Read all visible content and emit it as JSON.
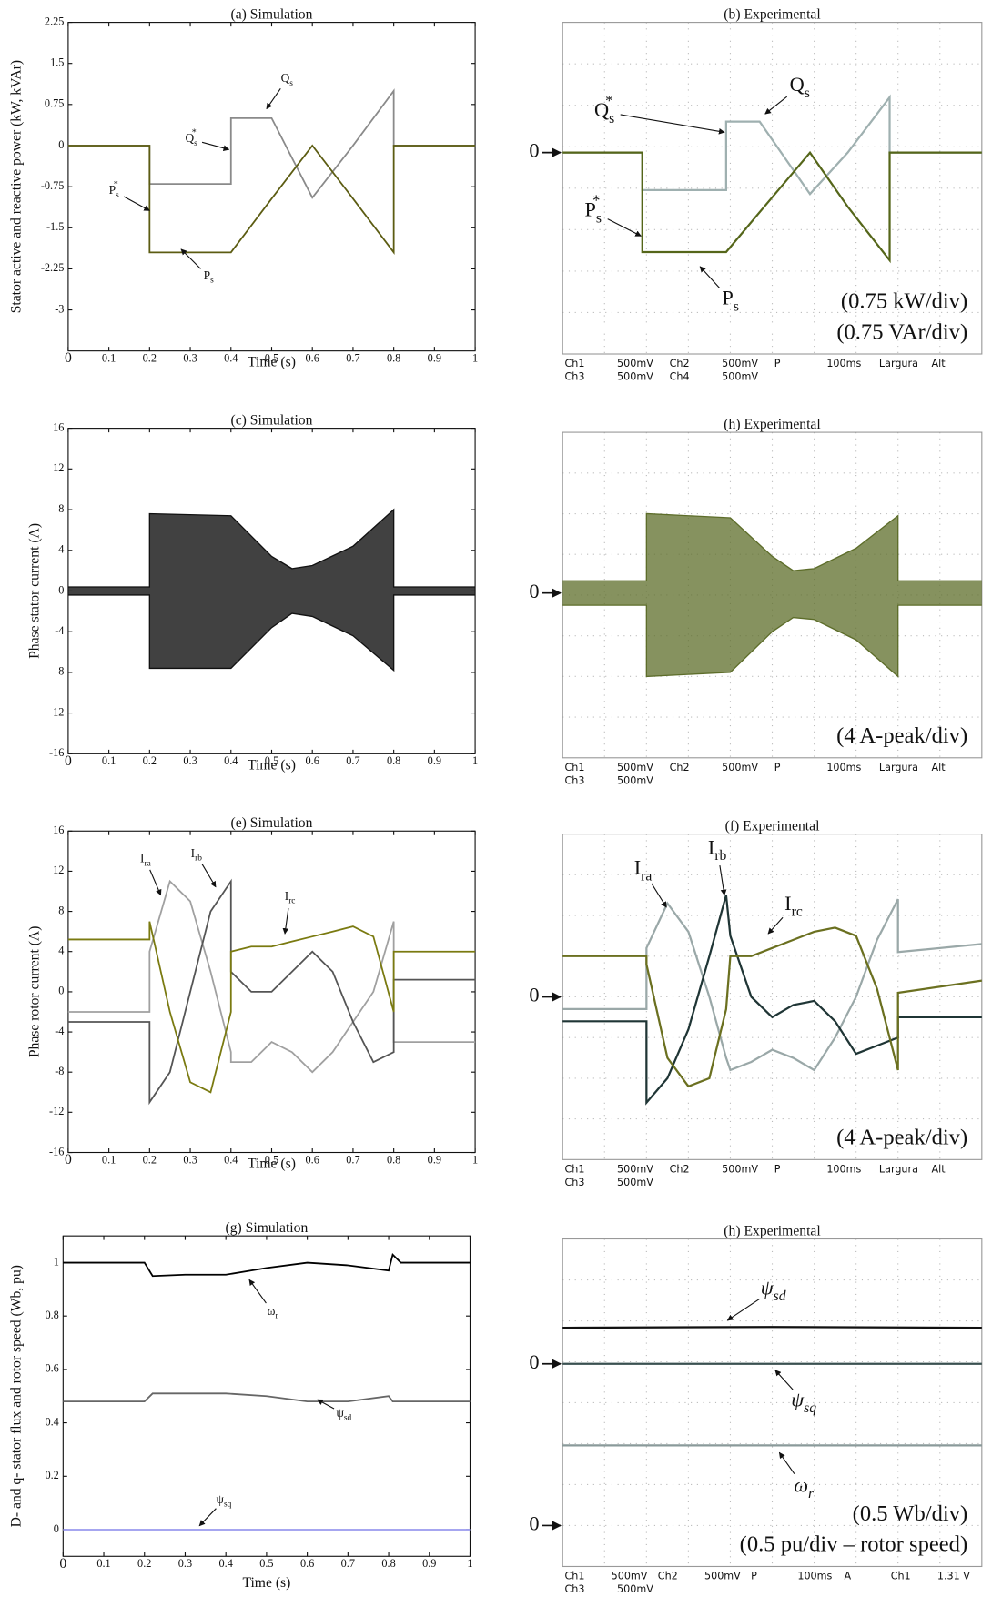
{
  "chart_data": [
    {
      "type": "line",
      "title": "(a) Simulation",
      "xlabel": "Time (s)",
      "ylabel": "Stator active and reactive power (kW, kVAr)",
      "x": [
        0,
        0.2,
        0.2,
        0.4,
        0.4,
        0.5,
        0.6,
        0.7,
        0.8,
        0.8,
        1
      ],
      "series": [
        {
          "color": "#8a8a8a",
          "values": [
            0,
            0,
            -0.7,
            -0.7,
            0.5,
            0.5,
            -0.95,
            0,
            1,
            0,
            0
          ]
        },
        {
          "color": "#5c5c12",
          "values": [
            0,
            0,
            -1.95,
            -1.95,
            -1.95,
            -0.97,
            0,
            -0.97,
            -1.95,
            0,
            0
          ]
        }
      ],
      "xlim": [
        0,
        1
      ],
      "ylim": [
        -3.75,
        2.25
      ],
      "xticks": [
        0,
        0.1,
        0.2,
        0.3,
        0.4,
        0.5,
        0.6,
        0.7,
        0.8,
        0.9,
        1
      ],
      "yticks": [
        2.25,
        1.5,
        0.75,
        0,
        -0.75,
        -1.5,
        -2.25,
        -3
      ],
      "annotations": [
        {
          "text": "Q",
          "sub": "s"
        },
        {
          "text": "Q",
          "sub": "s",
          "sup": "*"
        },
        {
          "text": "P",
          "sub": "s",
          "sup": "*"
        },
        {
          "text": "P",
          "sub": "s"
        }
      ]
    },
    {
      "type": "line",
      "title": "(b) Experimental",
      "x": [
        0,
        0.19,
        0.19,
        0.39,
        0.39,
        0.47,
        0.59,
        0.68,
        0.78,
        0.78,
        1
      ],
      "series": [
        {
          "color": "#9fb0b0",
          "values": [
            0,
            0,
            -0.68,
            -0.68,
            0.56,
            0.56,
            -0.75,
            0,
            1,
            0,
            0
          ]
        },
        {
          "color": "#55661a",
          "values": [
            0,
            0,
            -1.8,
            -1.8,
            -1.8,
            -1.08,
            0,
            -0.98,
            -1.95,
            0,
            0
          ]
        }
      ],
      "xlim": [
        0,
        1
      ],
      "ylim": [
        -3.645,
        2.355
      ],
      "yticks": [
        0
      ],
      "annotations": [
        {
          "text": "Q",
          "sub": "s",
          "sup": "*"
        },
        {
          "text": "Q",
          "sub": "s"
        },
        {
          "text": "P",
          "sub": "s",
          "sup": "*"
        },
        {
          "text": "P",
          "sub": "s"
        }
      ],
      "notes": [
        "(0.75 kW/div)",
        "(0.75 VAr/div)"
      ],
      "status": [
        [
          "Ch1",
          "500mV",
          "Ch2",
          "500mV",
          "P",
          "100ms",
          "Largura",
          "Alt"
        ],
        [
          "Ch3",
          "500mV",
          "Ch4",
          "500mV"
        ]
      ]
    },
    {
      "type": "envelope",
      "title": "(c) Simulation",
      "xlabel": "Time (s)",
      "ylabel": "Phase stator current (A)",
      "x": [
        0,
        0.2,
        0.2,
        0.3,
        0.4,
        0.5,
        0.55,
        0.6,
        0.7,
        0.8,
        0.8,
        1
      ],
      "series": [
        {
          "color": "#111111",
          "values": [
            0.4,
            0.4,
            7.6,
            7.5,
            7.4,
            3.4,
            2.2,
            2.5,
            4.4,
            8,
            0.4,
            0.4
          ]
        },
        {
          "color": "#111111",
          "values": [
            -0.4,
            -0.4,
            -7.6,
            -7.6,
            -7.6,
            -3.6,
            -2.2,
            -2.5,
            -4.4,
            -7.8,
            -0.4,
            -0.4
          ]
        }
      ],
      "xlim": [
        0,
        1
      ],
      "ylim": [
        -16,
        16
      ],
      "xticks": [
        0,
        0.1,
        0.2,
        0.3,
        0.4,
        0.5,
        0.6,
        0.7,
        0.8,
        0.9,
        1
      ],
      "yticks": [
        16,
        12,
        8,
        4,
        0,
        -4,
        -8,
        -12,
        -16
      ]
    },
    {
      "type": "envelope",
      "title": "(h) Experimental",
      "x": [
        0,
        0.2,
        0.2,
        0.3,
        0.4,
        0.5,
        0.55,
        0.6,
        0.7,
        0.8,
        0.8,
        1
      ],
      "series": [
        {
          "color": "#5d6d2a",
          "values": [
            1.2,
            1.2,
            7.8,
            7.6,
            7.4,
            3.6,
            2.2,
            2.4,
            4.4,
            7.6,
            1.2,
            1.2
          ]
        },
        {
          "color": "#5d6d2a",
          "values": [
            -1.2,
            -1.2,
            -8.2,
            -8,
            -7.8,
            -3.8,
            -2.4,
            -2.6,
            -4.6,
            -8.2,
            -1.2,
            -1.2
          ]
        }
      ],
      "xlim": [
        0,
        1
      ],
      "ylim": [
        -16.2,
        15.8
      ],
      "yticks": [
        0
      ],
      "notes": [
        "(4 A-peak/div)"
      ],
      "status": [
        [
          "Ch1",
          "500mV",
          "Ch2",
          "500mV",
          "P",
          "100ms",
          "Largura",
          "Alt"
        ],
        [
          "Ch3",
          "500mV"
        ]
      ]
    },
    {
      "type": "line",
      "title": "(e) Simulation",
      "xlabel": "Time (s)",
      "ylabel": "Phase rotor current (A)",
      "x": [
        0,
        0.2,
        0.2,
        0.25,
        0.3,
        0.35,
        0.4,
        0.4,
        0.45,
        0.5,
        0.55,
        0.6,
        0.65,
        0.7,
        0.75,
        0.8,
        0.8,
        1
      ],
      "series": [
        {
          "color": "#a0a0a0",
          "values": [
            -2,
            -2,
            4,
            11,
            9,
            2,
            -6,
            -7,
            -7,
            -5,
            -6,
            -8,
            -6,
            -3,
            0,
            7,
            -5,
            -5
          ]
        },
        {
          "color": "#555555",
          "values": [
            -3,
            -3,
            -11,
            -8,
            0,
            8,
            11,
            2,
            0,
            0,
            2,
            4,
            2,
            -3,
            -7,
            -6,
            1.2,
            1.2
          ]
        },
        {
          "color": "#7a7a10",
          "values": [
            5.2,
            5.2,
            7,
            -2,
            -9,
            -10,
            -2,
            4,
            4.5,
            4.5,
            5,
            5.5,
            6,
            6.5,
            5.5,
            -2,
            4,
            4
          ]
        }
      ],
      "xlim": [
        0,
        1
      ],
      "ylim": [
        -16,
        16
      ],
      "xticks": [
        0,
        0.1,
        0.2,
        0.3,
        0.4,
        0.5,
        0.6,
        0.7,
        0.8,
        0.9,
        1
      ],
      "yticks": [
        16,
        12,
        8,
        4,
        0,
        -4,
        -8,
        -12,
        -16
      ],
      "annotations": [
        {
          "text": "I",
          "sub": "ra"
        },
        {
          "text": "I",
          "sub": "rb"
        },
        {
          "text": "I",
          "sub": "rc"
        }
      ]
    },
    {
      "type": "line",
      "title": "(f) Experimental",
      "x": [
        0,
        0.2,
        0.2,
        0.25,
        0.3,
        0.35,
        0.39,
        0.4,
        0.45,
        0.5,
        0.55,
        0.6,
        0.65,
        0.7,
        0.75,
        0.8,
        0.8,
        1
      ],
      "series": [
        {
          "color": "#9aa8a8",
          "values": [
            -1.2,
            -1.2,
            4.8,
            9.2,
            6.4,
            0,
            -6,
            -7.2,
            -6.4,
            -5.2,
            -6,
            -7.2,
            -4,
            0,
            5.6,
            9.6,
            4.4,
            5.2
          ]
        },
        {
          "color": "#1f3535",
          "values": [
            -2.4,
            -2.4,
            -10.4,
            -8,
            -3.2,
            4,
            10,
            6,
            0,
            -2,
            -0.8,
            -0.4,
            -2.4,
            -5.6,
            -4.8,
            -4,
            -2,
            -2
          ]
        },
        {
          "color": "#6b7020",
          "values": [
            4,
            4,
            3.2,
            -6,
            -8.8,
            -8,
            -1.2,
            4,
            4,
            4.8,
            5.6,
            6.4,
            6.8,
            6,
            0.8,
            -7.2,
            0.4,
            1.6
          ]
        }
      ],
      "xlim": [
        0,
        1
      ],
      "ylim": [
        -16,
        16
      ],
      "yticks": [
        0
      ],
      "annotations": [
        {
          "text": "I",
          "sub": "ra"
        },
        {
          "text": "I",
          "sub": "rb"
        },
        {
          "text": "I",
          "sub": "rc"
        }
      ],
      "notes": [
        "(4 A-peak/div)"
      ],
      "status": [
        [
          "Ch1",
          "500mV",
          "Ch2",
          "500mV",
          "P",
          "100ms",
          "Largura",
          "Alt"
        ],
        [
          "Ch3",
          "500mV"
        ]
      ]
    },
    {
      "type": "line",
      "title": "(g) Simulation",
      "xlabel": "Time (s)",
      "ylabel": "D- and q- stator flux and rotor speed (Wb, pu)",
      "x": [
        0,
        0.2,
        0.22,
        0.3,
        0.4,
        0.5,
        0.6,
        0.7,
        0.8,
        0.81,
        0.83,
        1
      ],
      "series": [
        {
          "color": "#000000",
          "values": [
            1,
            1,
            0.95,
            0.955,
            0.955,
            0.98,
            1,
            0.99,
            0.97,
            1.03,
            1,
            1
          ]
        },
        {
          "color": "#666666",
          "values": [
            0.48,
            0.48,
            0.51,
            0.51,
            0.51,
            0.5,
            0.48,
            0.48,
            0.5,
            0.48,
            0.48,
            0.48
          ]
        },
        {
          "color": "#9999ee",
          "values": [
            0,
            0,
            0,
            0,
            0,
            0,
            0,
            0,
            0,
            0,
            0,
            0
          ]
        }
      ],
      "xlim": [
        0,
        1
      ],
      "ylim": [
        -0.1,
        1.1
      ],
      "xticks": [
        0,
        0.1,
        0.2,
        0.3,
        0.4,
        0.5,
        0.6,
        0.7,
        0.8,
        0.9,
        1
      ],
      "yticks": [
        0,
        0.2,
        0.4,
        0.6,
        0.8,
        1
      ],
      "annotations": [
        {
          "text": "ω",
          "sub": "r"
        },
        {
          "text": "ψ",
          "sub": "sd"
        },
        {
          "text": "ψ",
          "sub": "sq"
        }
      ]
    },
    {
      "type": "line",
      "title": "(h) Experimental",
      "x": [
        0,
        0.5,
        1
      ],
      "series": [
        {
          "color": "#111111",
          "values": [
            0.44,
            0.45,
            0.44
          ]
        },
        {
          "color": "#3a5050",
          "values": [
            0,
            0,
            0
          ]
        },
        {
          "color": "#8a9a9a",
          "axis": "y2",
          "values": [
            0.98,
            0.98,
            0.98
          ]
        }
      ],
      "xlim": [
        0,
        1
      ],
      "ylim": [
        -2.475,
        1.525
      ],
      "yticks": [
        0
      ],
      "y2lim": [
        -0.5,
        3.5
      ],
      "y2ticks": [
        0
      ],
      "annotations": [
        {
          "text": "ψ",
          "sub": "sd"
        },
        {
          "text": "ψ",
          "sub": "sq"
        },
        {
          "text": "ω",
          "sub": "r"
        }
      ],
      "notes": [
        "(0.5 Wb/div)",
        "(0.5 pu/div – rotor speed)"
      ],
      "status": [
        [
          "Ch1",
          "500mV",
          "Ch2",
          "500mV",
          "P",
          "100ms",
          "A",
          "Ch1",
          "1.31 V"
        ],
        [
          "Ch3",
          "500mV"
        ]
      ]
    }
  ]
}
